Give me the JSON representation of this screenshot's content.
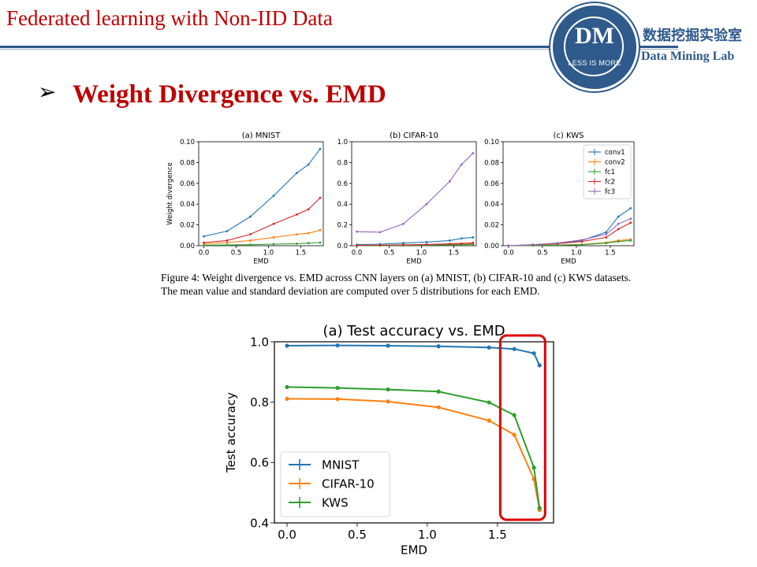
{
  "header": {
    "slide_title": "Federated learning with Non-IID Data",
    "logo_text": "DM",
    "logo_motto": "LESS IS MORE",
    "lab_name_cn": "数据挖掘实验室",
    "lab_name_en": "Data Mining Lab",
    "accent_color": "#c00000",
    "brand_color": "#2e5a8c"
  },
  "section": {
    "bullet_icon": "arrow-bullet-icon",
    "bullet_glyph": "➢",
    "title": "Weight Divergence vs. EMD"
  },
  "figure_caption": "Figure 4: Weight divergence vs. EMD across CNN layers on (a) MNIST, (b) CIFAR-10 and (c) KWS datasets. The mean value and standard deviation are computed over 5 distributions for each EMD.",
  "chart_data": [
    {
      "type": "line",
      "title": "(a) MNIST",
      "xlabel": "EMD",
      "ylabel": "Weight divergence",
      "xlim": [
        -0.08,
        1.85
      ],
      "ylim": [
        0,
        0.1
      ],
      "xticks": [
        "0.0",
        "0.5",
        "1.0",
        "1.5"
      ],
      "yticks": [
        "0.00",
        "0.02",
        "0.04",
        "0.06",
        "0.08",
        "0.10"
      ],
      "x": [
        0.0,
        0.36,
        0.72,
        1.08,
        1.44,
        1.62,
        1.8
      ],
      "series": [
        {
          "name": "conv1",
          "color": "#1f77b4",
          "values": [
            0.009,
            0.014,
            0.028,
            0.048,
            0.07,
            0.078,
            0.093
          ]
        },
        {
          "name": "conv2",
          "color": "#ff7f0e",
          "values": [
            0.002,
            0.003,
            0.005,
            0.008,
            0.011,
            0.012,
            0.015
          ]
        },
        {
          "name": "fc1",
          "color": "#2ca02c",
          "values": [
            0.0005,
            0.0007,
            0.001,
            0.0015,
            0.002,
            0.0025,
            0.003
          ]
        },
        {
          "name": "fc2",
          "color": "#d62728",
          "values": [
            0.003,
            0.005,
            0.011,
            0.021,
            0.03,
            0.035,
            0.046
          ]
        }
      ]
    },
    {
      "type": "line",
      "title": "(b) CIFAR-10",
      "xlabel": "EMD",
      "ylabel": "",
      "xlim": [
        -0.08,
        1.85
      ],
      "ylim": [
        0,
        1.0
      ],
      "xticks": [
        "0.0",
        "0.5",
        "1.0",
        "1.5"
      ],
      "yticks": [
        "0.0",
        "0.2",
        "0.4",
        "0.6",
        "0.8",
        "1.0"
      ],
      "x": [
        0.0,
        0.36,
        0.72,
        1.08,
        1.44,
        1.62,
        1.8
      ],
      "series": [
        {
          "name": "conv1",
          "color": "#1f77b4",
          "values": [
            0.01,
            0.015,
            0.025,
            0.035,
            0.05,
            0.07,
            0.08
          ]
        },
        {
          "name": "conv2",
          "color": "#ff7f0e",
          "values": [
            0.002,
            0.003,
            0.005,
            0.008,
            0.012,
            0.015,
            0.018
          ]
        },
        {
          "name": "fc1",
          "color": "#2ca02c",
          "values": [
            0.001,
            0.002,
            0.003,
            0.005,
            0.008,
            0.01,
            0.012
          ]
        },
        {
          "name": "fc2",
          "color": "#d62728",
          "values": [
            0.003,
            0.005,
            0.008,
            0.012,
            0.018,
            0.022,
            0.028
          ]
        },
        {
          "name": "fc3",
          "color": "#9467bd",
          "values": [
            0.135,
            0.13,
            0.21,
            0.4,
            0.62,
            0.78,
            0.89
          ]
        }
      ]
    },
    {
      "type": "line",
      "title": "(c) KWS",
      "xlabel": "EMD",
      "ylabel": "",
      "xlim": [
        -0.08,
        1.85
      ],
      "ylim": [
        0,
        0.1
      ],
      "xticks": [
        "0.0",
        "0.5",
        "1.0",
        "1.5"
      ],
      "yticks": [
        "0.00",
        "0.02",
        "0.04",
        "0.06",
        "0.08",
        "0.10"
      ],
      "x": [
        0.0,
        0.36,
        0.72,
        1.08,
        1.44,
        1.62,
        1.8
      ],
      "legend": {
        "position": "top-right",
        "entries": [
          "conv1",
          "conv2",
          "fc1",
          "fc2",
          "fc3"
        ]
      },
      "series": [
        {
          "name": "conv1",
          "color": "#1f77b4",
          "values": [
            0.0,
            0.001,
            0.002,
            0.005,
            0.013,
            0.028,
            0.036
          ]
        },
        {
          "name": "conv2",
          "color": "#ff7f0e",
          "values": [
            0.0,
            0.0003,
            0.0006,
            0.0012,
            0.003,
            0.005,
            0.006
          ]
        },
        {
          "name": "fc1",
          "color": "#2ca02c",
          "values": [
            0.0,
            0.0002,
            0.0005,
            0.001,
            0.0025,
            0.004,
            0.005
          ]
        },
        {
          "name": "fc2",
          "color": "#d62728",
          "values": [
            0.0,
            0.0008,
            0.002,
            0.004,
            0.008,
            0.016,
            0.022
          ]
        },
        {
          "name": "fc3",
          "color": "#9467bd",
          "values": [
            0.0,
            0.001,
            0.0025,
            0.0055,
            0.011,
            0.021,
            0.026
          ]
        }
      ]
    },
    {
      "type": "line",
      "title": "(a) Test accuracy vs. EMD",
      "xlabel": "EMD",
      "ylabel": "Test accuracy",
      "xlim": [
        -0.09,
        1.9
      ],
      "ylim": [
        0.4,
        1.0
      ],
      "xticks": [
        "0.0",
        "0.5",
        "1.0",
        "1.5"
      ],
      "yticks": [
        "0.4",
        "0.6",
        "0.8",
        "1.0"
      ],
      "legend": {
        "position": "lower-left",
        "entries": [
          "MNIST",
          "CIFAR-10",
          "KWS"
        ]
      },
      "highlight": {
        "x_range": [
          1.52,
          1.84
        ],
        "color": "#e00000"
      },
      "series": [
        {
          "name": "MNIST",
          "color": "#1f77b4",
          "x": [
            0.0,
            0.36,
            0.72,
            1.08,
            1.44,
            1.62,
            1.76,
            1.8
          ],
          "values": [
            0.987,
            0.988,
            0.987,
            0.985,
            0.981,
            0.976,
            0.962,
            0.922
          ]
        },
        {
          "name": "CIFAR-10",
          "color": "#ff7f0e",
          "x": [
            0.0,
            0.36,
            0.72,
            1.08,
            1.44,
            1.62,
            1.76,
            1.8
          ],
          "values": [
            0.811,
            0.81,
            0.802,
            0.783,
            0.739,
            0.692,
            0.545,
            0.443
          ]
        },
        {
          "name": "KWS",
          "color": "#2ca02c",
          "x": [
            0.0,
            0.36,
            0.72,
            1.08,
            1.44,
            1.62,
            1.76,
            1.8
          ],
          "values": [
            0.85,
            0.847,
            0.842,
            0.835,
            0.799,
            0.757,
            0.583,
            0.449
          ]
        }
      ]
    }
  ]
}
